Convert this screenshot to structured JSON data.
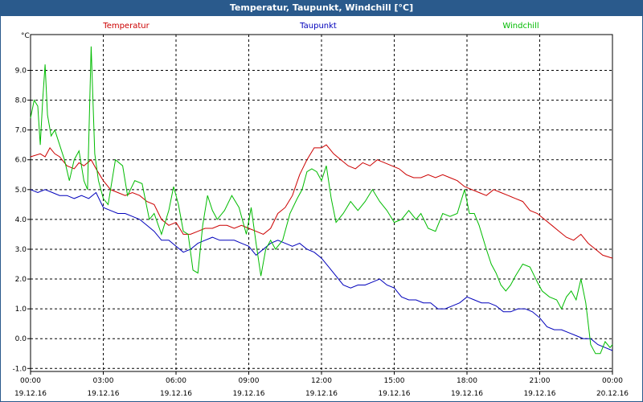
{
  "window": {
    "title": "Temperatur, Taupunkt, Windchill [°C]"
  },
  "chart_data": {
    "type": "line",
    "title": "Temperatur, Taupunkt, Windchill [°C]",
    "ylabel": "°C",
    "xlabel": "",
    "grid": true,
    "legend_placement": "top",
    "ylim": [
      -1.1,
      10.2
    ],
    "xlim": [
      0,
      24
    ],
    "y_ticks": [
      -1.0,
      0.0,
      1.0,
      2.0,
      3.0,
      4.0,
      5.0,
      6.0,
      7.0,
      8.0,
      9.0
    ],
    "y_tick_labels": [
      "-1.0",
      "0.0",
      "1.0",
      "2.0",
      "3.0",
      "4.0",
      "5.0",
      "6.0",
      "7.0",
      "8.0",
      "9.0"
    ],
    "x_ticks": [
      {
        "x": 0,
        "time": "00:00",
        "date": "19.12.16"
      },
      {
        "x": 3,
        "time": "03:00",
        "date": "19.12.16"
      },
      {
        "x": 6,
        "time": "06:00",
        "date": "19.12.16"
      },
      {
        "x": 9,
        "time": "09:00",
        "date": "19.12.16"
      },
      {
        "x": 12,
        "time": "12:00",
        "date": "19.12.16"
      },
      {
        "x": 15,
        "time": "15:00",
        "date": "19.12.16"
      },
      {
        "x": 18,
        "time": "18:00",
        "date": "19.12.16"
      },
      {
        "x": 21,
        "time": "21:00",
        "date": "19.12.16"
      },
      {
        "x": 24,
        "time": "00:00",
        "date": "20.12.16"
      }
    ],
    "series": [
      {
        "name": "Temperatur",
        "color": "#cc0000",
        "points": [
          [
            0,
            6.1
          ],
          [
            0.4,
            6.2
          ],
          [
            0.6,
            6.1
          ],
          [
            0.8,
            6.4
          ],
          [
            1.0,
            6.2
          ],
          [
            1.2,
            6.1
          ],
          [
            1.5,
            5.8
          ],
          [
            1.8,
            5.7
          ],
          [
            2.0,
            5.9
          ],
          [
            2.2,
            5.8
          ],
          [
            2.5,
            6.0
          ],
          [
            2.7,
            5.7
          ],
          [
            3.0,
            5.3
          ],
          [
            3.3,
            5.0
          ],
          [
            3.6,
            4.9
          ],
          [
            3.9,
            4.8
          ],
          [
            4.2,
            4.9
          ],
          [
            4.5,
            4.8
          ],
          [
            4.8,
            4.6
          ],
          [
            5.1,
            4.5
          ],
          [
            5.4,
            4.0
          ],
          [
            5.7,
            3.8
          ],
          [
            6.0,
            3.9
          ],
          [
            6.3,
            3.5
          ],
          [
            6.6,
            3.5
          ],
          [
            6.9,
            3.6
          ],
          [
            7.2,
            3.7
          ],
          [
            7.5,
            3.7
          ],
          [
            7.8,
            3.8
          ],
          [
            8.1,
            3.8
          ],
          [
            8.4,
            3.7
          ],
          [
            8.7,
            3.8
          ],
          [
            9.0,
            3.7
          ],
          [
            9.3,
            3.6
          ],
          [
            9.6,
            3.5
          ],
          [
            9.9,
            3.7
          ],
          [
            10.2,
            4.2
          ],
          [
            10.5,
            4.4
          ],
          [
            10.8,
            4.8
          ],
          [
            11.1,
            5.5
          ],
          [
            11.4,
            6.0
          ],
          [
            11.7,
            6.4
          ],
          [
            12.0,
            6.4
          ],
          [
            12.2,
            6.5
          ],
          [
            12.5,
            6.2
          ],
          [
            12.8,
            6.0
          ],
          [
            13.1,
            5.8
          ],
          [
            13.4,
            5.7
          ],
          [
            13.7,
            5.9
          ],
          [
            14.0,
            5.8
          ],
          [
            14.3,
            6.0
          ],
          [
            14.6,
            5.9
          ],
          [
            14.9,
            5.8
          ],
          [
            15.2,
            5.7
          ],
          [
            15.5,
            5.5
          ],
          [
            15.8,
            5.4
          ],
          [
            16.1,
            5.4
          ],
          [
            16.4,
            5.5
          ],
          [
            16.7,
            5.4
          ],
          [
            17.0,
            5.5
          ],
          [
            17.3,
            5.4
          ],
          [
            17.6,
            5.3
          ],
          [
            17.9,
            5.1
          ],
          [
            18.2,
            5.0
          ],
          [
            18.5,
            4.9
          ],
          [
            18.8,
            4.8
          ],
          [
            19.1,
            5.0
          ],
          [
            19.4,
            4.9
          ],
          [
            19.7,
            4.8
          ],
          [
            20.0,
            4.7
          ],
          [
            20.3,
            4.6
          ],
          [
            20.6,
            4.3
          ],
          [
            20.9,
            4.2
          ],
          [
            21.2,
            4.0
          ],
          [
            21.5,
            3.8
          ],
          [
            21.8,
            3.6
          ],
          [
            22.1,
            3.4
          ],
          [
            22.4,
            3.3
          ],
          [
            22.7,
            3.5
          ],
          [
            23.0,
            3.2
          ],
          [
            23.3,
            3.0
          ],
          [
            23.6,
            2.8
          ],
          [
            24.0,
            2.7
          ]
        ]
      },
      {
        "name": "Taupunkt",
        "color": "#0000bb",
        "points": [
          [
            0,
            5.0
          ],
          [
            0.3,
            4.9
          ],
          [
            0.6,
            5.0
          ],
          [
            0.9,
            4.9
          ],
          [
            1.2,
            4.8
          ],
          [
            1.5,
            4.8
          ],
          [
            1.8,
            4.7
          ],
          [
            2.1,
            4.8
          ],
          [
            2.4,
            4.7
          ],
          [
            2.7,
            4.9
          ],
          [
            3.0,
            4.4
          ],
          [
            3.3,
            4.3
          ],
          [
            3.6,
            4.2
          ],
          [
            3.9,
            4.2
          ],
          [
            4.2,
            4.1
          ],
          [
            4.5,
            4.0
          ],
          [
            4.8,
            3.8
          ],
          [
            5.1,
            3.6
          ],
          [
            5.4,
            3.3
          ],
          [
            5.7,
            3.3
          ],
          [
            6.0,
            3.1
          ],
          [
            6.3,
            2.9
          ],
          [
            6.6,
            3.0
          ],
          [
            6.9,
            3.2
          ],
          [
            7.2,
            3.3
          ],
          [
            7.5,
            3.4
          ],
          [
            7.8,
            3.3
          ],
          [
            8.1,
            3.3
          ],
          [
            8.4,
            3.3
          ],
          [
            8.7,
            3.2
          ],
          [
            9.0,
            3.1
          ],
          [
            9.3,
            2.8
          ],
          [
            9.6,
            3.0
          ],
          [
            9.9,
            3.2
          ],
          [
            10.2,
            3.3
          ],
          [
            10.5,
            3.2
          ],
          [
            10.8,
            3.1
          ],
          [
            11.1,
            3.2
          ],
          [
            11.4,
            3.0
          ],
          [
            11.7,
            2.9
          ],
          [
            12.0,
            2.7
          ],
          [
            12.3,
            2.4
          ],
          [
            12.6,
            2.1
          ],
          [
            12.9,
            1.8
          ],
          [
            13.2,
            1.7
          ],
          [
            13.5,
            1.8
          ],
          [
            13.8,
            1.8
          ],
          [
            14.1,
            1.9
          ],
          [
            14.4,
            2.0
          ],
          [
            14.7,
            1.8
          ],
          [
            15.0,
            1.7
          ],
          [
            15.3,
            1.4
          ],
          [
            15.6,
            1.3
          ],
          [
            15.9,
            1.3
          ],
          [
            16.2,
            1.2
          ],
          [
            16.5,
            1.2
          ],
          [
            16.8,
            1.0
          ],
          [
            17.1,
            1.0
          ],
          [
            17.4,
            1.1
          ],
          [
            17.7,
            1.2
          ],
          [
            18.0,
            1.4
          ],
          [
            18.3,
            1.3
          ],
          [
            18.6,
            1.2
          ],
          [
            18.9,
            1.2
          ],
          [
            19.2,
            1.1
          ],
          [
            19.5,
            0.9
          ],
          [
            19.8,
            0.9
          ],
          [
            20.1,
            1.0
          ],
          [
            20.4,
            1.0
          ],
          [
            20.7,
            0.9
          ],
          [
            21.0,
            0.7
          ],
          [
            21.3,
            0.4
          ],
          [
            21.6,
            0.3
          ],
          [
            21.9,
            0.3
          ],
          [
            22.2,
            0.2
          ],
          [
            22.5,
            0.1
          ],
          [
            22.8,
            0.0
          ],
          [
            23.1,
            0.0
          ],
          [
            23.4,
            -0.2
          ],
          [
            23.7,
            -0.3
          ],
          [
            24.0,
            -0.4
          ]
        ]
      },
      {
        "name": "Windchill",
        "color": "#00bb00",
        "points": [
          [
            0,
            7.4
          ],
          [
            0.15,
            8.0
          ],
          [
            0.3,
            7.8
          ],
          [
            0.4,
            6.5
          ],
          [
            0.5,
            8.0
          ],
          [
            0.6,
            9.2
          ],
          [
            0.7,
            7.5
          ],
          [
            0.85,
            6.8
          ],
          [
            1.0,
            7.0
          ],
          [
            1.2,
            6.5
          ],
          [
            1.4,
            6.0
          ],
          [
            1.6,
            5.3
          ],
          [
            1.8,
            6.0
          ],
          [
            2.0,
            6.3
          ],
          [
            2.2,
            5.3
          ],
          [
            2.35,
            5.0
          ],
          [
            2.5,
            9.8
          ],
          [
            2.65,
            6.2
          ],
          [
            2.8,
            5.3
          ],
          [
            3.0,
            4.7
          ],
          [
            3.2,
            4.5
          ],
          [
            3.5,
            6.0
          ],
          [
            3.8,
            5.8
          ],
          [
            4.0,
            4.8
          ],
          [
            4.3,
            5.3
          ],
          [
            4.6,
            5.2
          ],
          [
            4.9,
            4.0
          ],
          [
            5.1,
            4.2
          ],
          [
            5.4,
            3.5
          ],
          [
            5.7,
            4.3
          ],
          [
            5.9,
            5.1
          ],
          [
            6.1,
            4.5
          ],
          [
            6.3,
            3.6
          ],
          [
            6.5,
            3.5
          ],
          [
            6.7,
            2.3
          ],
          [
            6.9,
            2.2
          ],
          [
            7.1,
            3.8
          ],
          [
            7.3,
            4.8
          ],
          [
            7.5,
            4.3
          ],
          [
            7.7,
            4.0
          ],
          [
            8.0,
            4.3
          ],
          [
            8.3,
            4.8
          ],
          [
            8.6,
            4.4
          ],
          [
            8.9,
            3.5
          ],
          [
            9.1,
            4.4
          ],
          [
            9.3,
            3.2
          ],
          [
            9.5,
            2.1
          ],
          [
            9.7,
            3.0
          ],
          [
            9.9,
            3.3
          ],
          [
            10.1,
            3.0
          ],
          [
            10.4,
            3.3
          ],
          [
            10.7,
            4.2
          ],
          [
            11.0,
            4.7
          ],
          [
            11.2,
            5.0
          ],
          [
            11.4,
            5.6
          ],
          [
            11.6,
            5.7
          ],
          [
            11.8,
            5.6
          ],
          [
            12.0,
            5.3
          ],
          [
            12.2,
            5.8
          ],
          [
            12.4,
            4.7
          ],
          [
            12.6,
            3.9
          ],
          [
            12.9,
            4.2
          ],
          [
            13.2,
            4.6
          ],
          [
            13.5,
            4.3
          ],
          [
            13.8,
            4.6
          ],
          [
            14.1,
            5.0
          ],
          [
            14.4,
            4.6
          ],
          [
            14.7,
            4.3
          ],
          [
            15.0,
            3.9
          ],
          [
            15.3,
            4.0
          ],
          [
            15.6,
            4.3
          ],
          [
            15.9,
            4.0
          ],
          [
            16.1,
            4.2
          ],
          [
            16.4,
            3.7
          ],
          [
            16.7,
            3.6
          ],
          [
            17.0,
            4.2
          ],
          [
            17.3,
            4.1
          ],
          [
            17.6,
            4.2
          ],
          [
            17.9,
            5.0
          ],
          [
            18.1,
            4.2
          ],
          [
            18.3,
            4.2
          ],
          [
            18.5,
            3.8
          ],
          [
            18.8,
            3.0
          ],
          [
            19.0,
            2.5
          ],
          [
            19.2,
            2.2
          ],
          [
            19.4,
            1.8
          ],
          [
            19.6,
            1.6
          ],
          [
            19.8,
            1.8
          ],
          [
            20.0,
            2.1
          ],
          [
            20.3,
            2.5
          ],
          [
            20.6,
            2.4
          ],
          [
            20.9,
            1.9
          ],
          [
            21.1,
            1.6
          ],
          [
            21.4,
            1.4
          ],
          [
            21.7,
            1.3
          ],
          [
            21.9,
            1.0
          ],
          [
            22.1,
            1.4
          ],
          [
            22.3,
            1.6
          ],
          [
            22.5,
            1.3
          ],
          [
            22.7,
            2.0
          ],
          [
            22.9,
            1.2
          ],
          [
            23.1,
            -0.2
          ],
          [
            23.3,
            -0.5
          ],
          [
            23.5,
            -0.5
          ],
          [
            23.7,
            -0.1
          ],
          [
            23.9,
            -0.3
          ],
          [
            24.0,
            -0.2
          ]
        ]
      }
    ]
  }
}
